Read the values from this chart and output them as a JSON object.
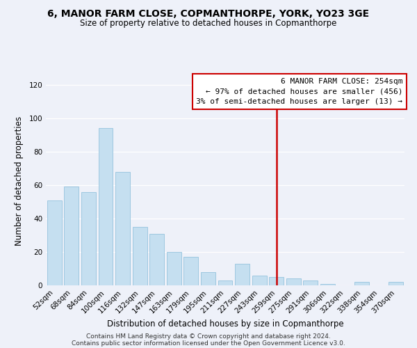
{
  "title": "6, MANOR FARM CLOSE, COPMANTHORPE, YORK, YO23 3GE",
  "subtitle": "Size of property relative to detached houses in Copmanthorpe",
  "xlabel": "Distribution of detached houses by size in Copmanthorpe",
  "ylabel": "Number of detached properties",
  "bar_labels": [
    "52sqm",
    "68sqm",
    "84sqm",
    "100sqm",
    "116sqm",
    "132sqm",
    "147sqm",
    "163sqm",
    "179sqm",
    "195sqm",
    "211sqm",
    "227sqm",
    "243sqm",
    "259sqm",
    "275sqm",
    "291sqm",
    "306sqm",
    "322sqm",
    "338sqm",
    "354sqm",
    "370sqm"
  ],
  "bar_values": [
    51,
    59,
    56,
    94,
    68,
    35,
    31,
    20,
    17,
    8,
    3,
    13,
    6,
    5,
    4,
    3,
    1,
    0,
    2,
    0,
    2
  ],
  "bar_color": "#c5dff0",
  "bar_edge_color": "#9ec8e0",
  "vline_x_index": 13.0,
  "vline_color": "#cc0000",
  "annotation_title": "6 MANOR FARM CLOSE: 254sqm",
  "annotation_line1": "← 97% of detached houses are smaller (456)",
  "annotation_line2": "3% of semi-detached houses are larger (13) →",
  "annotation_box_color": "#ffffff",
  "annotation_box_edge": "#cc0000",
  "ylim": [
    0,
    125
  ],
  "yticks": [
    0,
    20,
    40,
    60,
    80,
    100,
    120
  ],
  "footer1": "Contains HM Land Registry data © Crown copyright and database right 2024.",
  "footer2": "Contains public sector information licensed under the Open Government Licence v3.0.",
  "bg_color": "#eef1f9",
  "grid_color": "#ffffff",
  "title_fontsize": 10,
  "subtitle_fontsize": 8.5,
  "axis_label_fontsize": 8.5,
  "tick_fontsize": 7.5,
  "annotation_fontsize": 8,
  "footer_fontsize": 6.5
}
